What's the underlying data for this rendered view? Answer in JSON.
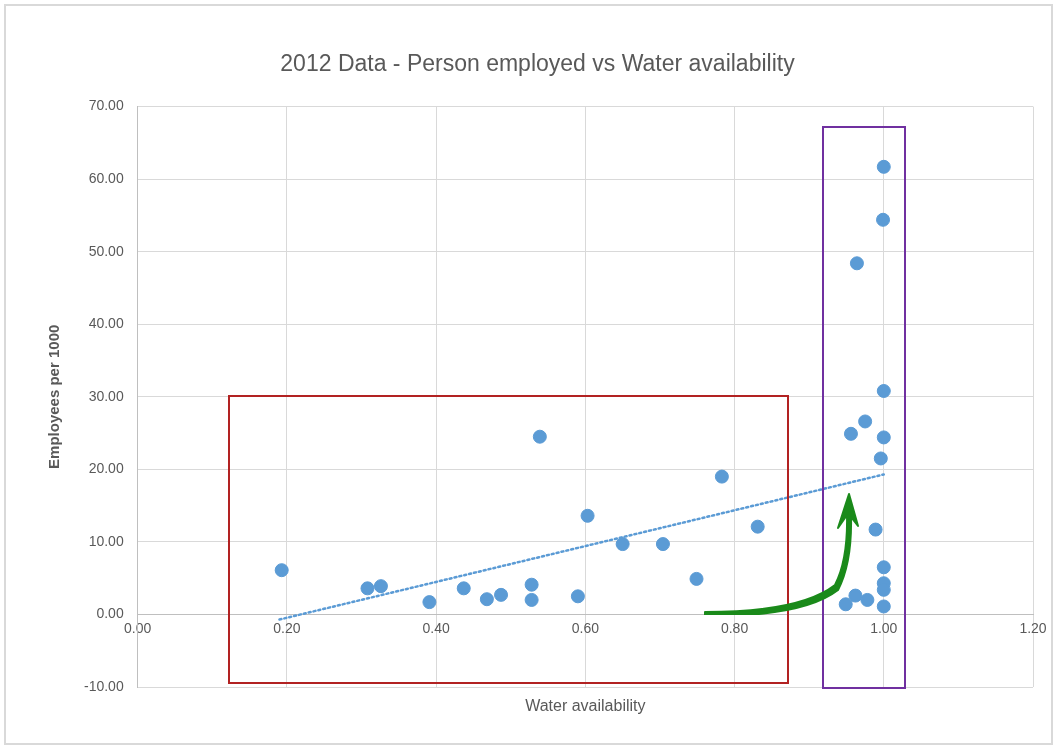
{
  "chart_data": {
    "type": "scatter",
    "title": "2012 Data - Person employed vs Water availability",
    "xlabel": "Water availability",
    "ylabel": "Employees per 1000",
    "xlim": [
      0,
      1.2
    ],
    "xticks": [
      {
        "value": 0,
        "label": "0.00"
      },
      {
        "value": 0.2,
        "label": "0.20"
      },
      {
        "value": 0.4,
        "label": "0.40"
      },
      {
        "value": 0.6,
        "label": "0.60"
      },
      {
        "value": 0.8,
        "label": "0.80"
      },
      {
        "value": 1,
        "label": "1.00"
      },
      {
        "value": 1.2,
        "label": "1.20"
      }
    ],
    "ylim": [
      -10,
      70
    ],
    "yticks": [
      {
        "value": -10,
        "label": "-10.00"
      },
      {
        "value": 0,
        "label": "0.00"
      },
      {
        "value": 10,
        "label": "10.00"
      },
      {
        "value": 20,
        "label": "20.00"
      },
      {
        "value": 30,
        "label": "30.00"
      },
      {
        "value": 40,
        "label": "40.00"
      },
      {
        "value": 50,
        "label": "50.00"
      },
      {
        "value": 60,
        "label": "60.00"
      },
      {
        "value": 70,
        "label": "70.00"
      }
    ],
    "grid": true,
    "legend": false,
    "marker": "circle",
    "series": [
      {
        "type": "scatter",
        "color": "#5b9bd5",
        "x": [
          0.193,
          0.308,
          0.326,
          0.391,
          0.437,
          0.468,
          0.487,
          0.528,
          0.528,
          0.539,
          0.59,
          0.603,
          0.65,
          0.704,
          0.749,
          0.783,
          0.831,
          1.0,
          0.999,
          0.964,
          1.0,
          0.975,
          0.956,
          1.0,
          0.996,
          0.989,
          1.0,
          1.0,
          1.0,
          1.0,
          0.949,
          0.962,
          0.978
        ],
        "values": [
          6.1,
          3.6,
          3.9,
          1.7,
          3.6,
          2.1,
          2.7,
          4.1,
          2.0,
          24.5,
          2.5,
          13.6,
          9.7,
          9.7,
          4.9,
          19.0,
          12.1,
          61.7,
          54.4,
          48.4,
          30.8,
          26.6,
          24.9,
          24.4,
          21.5,
          11.7,
          6.5,
          4.3,
          3.4,
          1.1,
          1.4,
          2.6,
          2.0
        ]
      },
      {
        "type": "line",
        "color": "#5b9bd5",
        "line_style": "dotted",
        "marker": "none",
        "x": [
          0.19,
          1.0
        ],
        "values": [
          -0.7,
          19.3
        ]
      }
    ]
  }
}
